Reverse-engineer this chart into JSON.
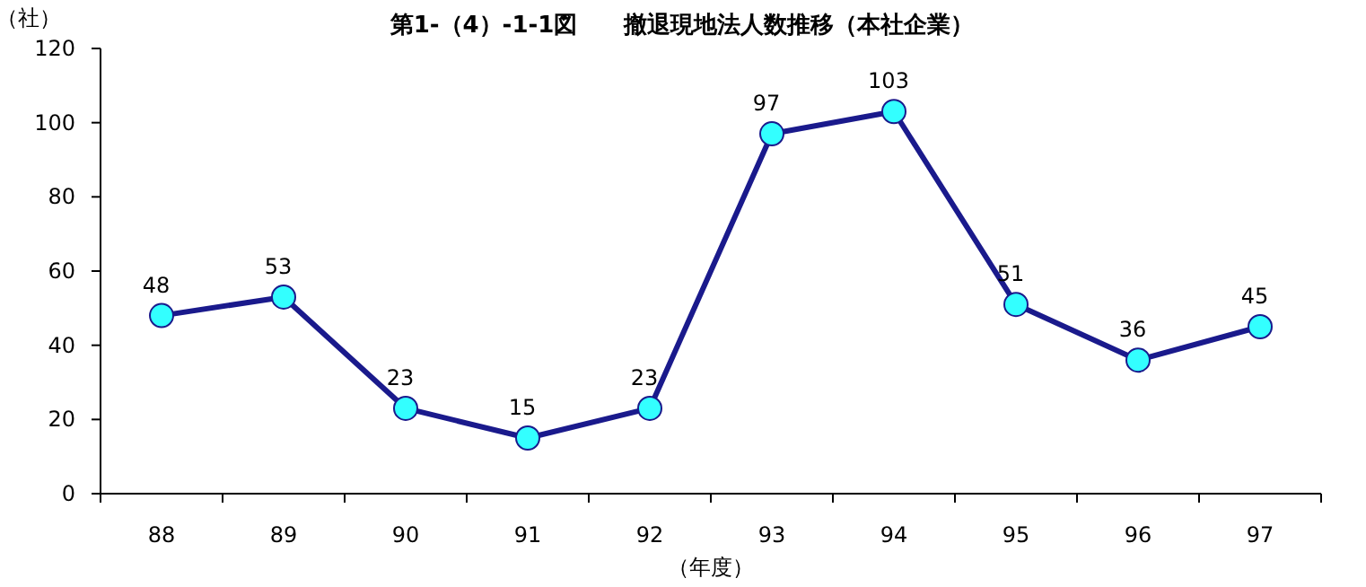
{
  "chart_data": {
    "type": "line",
    "title": "第1-（4）-1-1図　　撤退現地法人数推移（本社企業）",
    "ylabel": "（社）",
    "xlabel": "（年度）",
    "categories": [
      "88",
      "89",
      "90",
      "91",
      "92",
      "93",
      "94",
      "95",
      "96",
      "97"
    ],
    "series": [
      {
        "color": "#1a1a8c",
        "values": [
          48,
          53,
          23,
          15,
          23,
          97,
          103,
          51,
          36,
          45
        ]
      }
    ],
    "marker": "circle",
    "data_labels": true,
    "ylim": [
      0,
      120
    ],
    "yticks": [
      0,
      20,
      40,
      60,
      80,
      100,
      120
    ]
  }
}
